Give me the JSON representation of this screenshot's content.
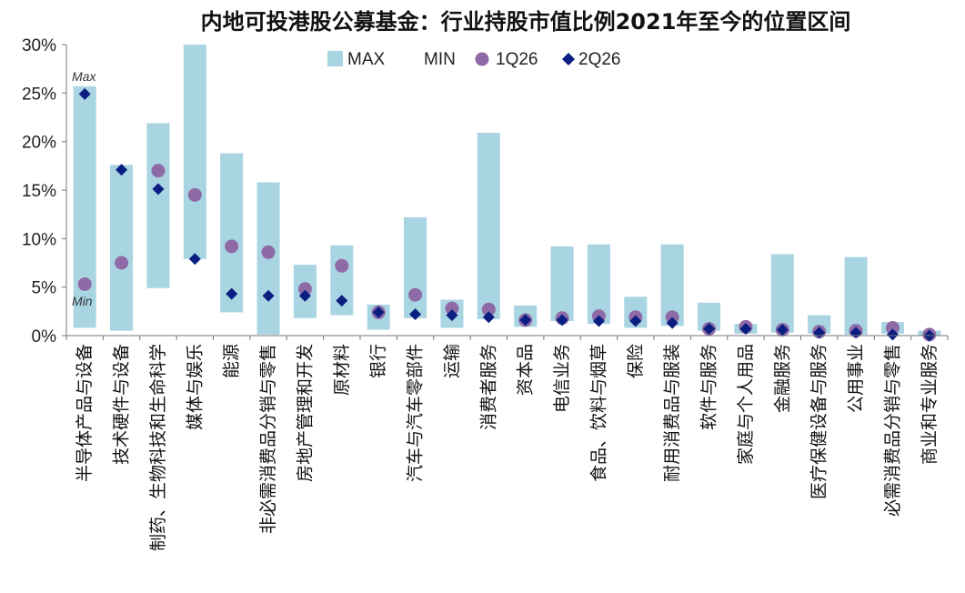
{
  "chart_data": {
    "type": "bar",
    "title": "内地可投港股公募基金：行业持股市值比例2021年至今的位置区间",
    "y_axis": {
      "ylim": [
        0,
        30
      ],
      "ticks": [
        0,
        5,
        10,
        15,
        20,
        25,
        30
      ],
      "tick_labels": [
        "0%",
        "5%",
        "10%",
        "15%",
        "20%",
        "25%",
        "30%"
      ]
    },
    "legend": {
      "placement": "top",
      "entries": [
        "MAX",
        "MIN",
        "1Q26",
        "2Q26"
      ]
    },
    "annotations": {
      "max": "Max",
      "min": "Min"
    },
    "colors": {
      "range": "#A9D5E3",
      "q1": "#8E6BA6",
      "q2": "#0A1E82"
    },
    "categories": [
      "半导体产品与设备",
      "技术硬件与设备",
      "制药、生物科技和生命科学",
      "媒体与娱乐",
      "能源",
      "非必需消费品分销与零售",
      "房地产管理和开发",
      "原材料",
      "银行",
      "汽车与汽车零部件",
      "运输",
      "消费者服务",
      "资本品",
      "电信业务",
      "食品、饮料与烟草",
      "保险",
      "耐用消费品与服装",
      "软件与服务",
      "家庭与个人用品",
      "金融服务",
      "医疗保健设备与服务",
      "公用事业",
      "必需消费品分销与零售",
      "商业和专业服务"
    ],
    "series": [
      {
        "name": "MAX",
        "values": [
          25.7,
          17.6,
          21.9,
          30.0,
          18.8,
          15.8,
          7.3,
          9.3,
          3.2,
          12.2,
          3.7,
          20.9,
          3.1,
          9.2,
          9.4,
          4.0,
          9.4,
          3.4,
          1.2,
          8.4,
          2.1,
          8.1,
          1.4,
          0.5
        ]
      },
      {
        "name": "MIN",
        "values": [
          0.8,
          0.5,
          4.9,
          7.9,
          2.4,
          0.1,
          1.8,
          2.1,
          0.6,
          1.8,
          0.8,
          1.7,
          0.9,
          1.5,
          1.2,
          0.8,
          1.0,
          0.5,
          0.2,
          0.3,
          0.2,
          0.1,
          0.2,
          0.0
        ]
      },
      {
        "name": "1Q26",
        "values": [
          5.3,
          7.5,
          17.0,
          14.5,
          9.2,
          8.6,
          4.8,
          7.2,
          2.4,
          4.2,
          2.8,
          2.7,
          1.6,
          1.8,
          2.0,
          1.9,
          1.9,
          0.7,
          0.9,
          0.6,
          0.4,
          0.5,
          0.8,
          0.1
        ]
      },
      {
        "name": "2Q26",
        "values": [
          24.9,
          17.1,
          15.1,
          7.9,
          4.3,
          4.1,
          4.1,
          3.6,
          2.4,
          2.2,
          2.1,
          1.9,
          1.6,
          1.6,
          1.5,
          1.5,
          1.3,
          0.7,
          0.7,
          0.6,
          0.3,
          0.3,
          0.1,
          0.0
        ]
      }
    ]
  }
}
